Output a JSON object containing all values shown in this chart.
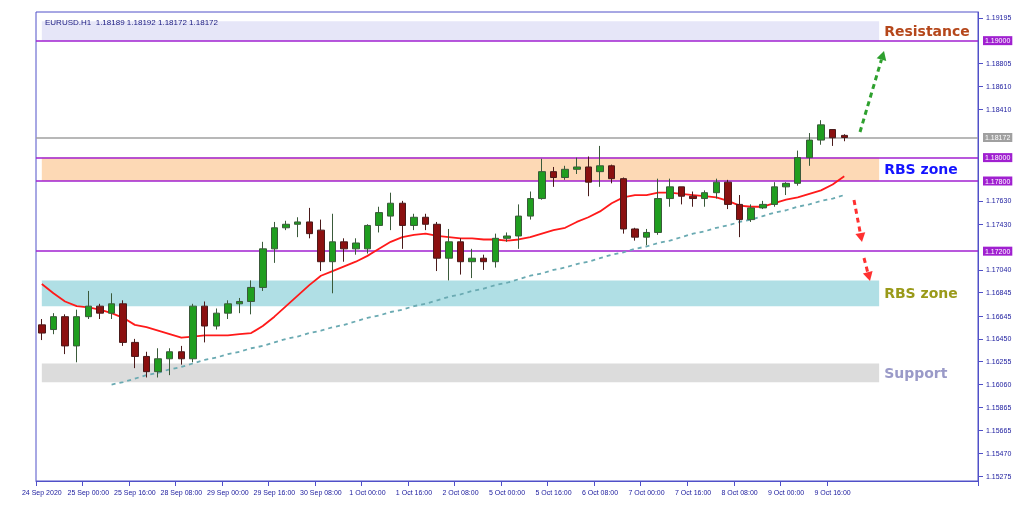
{
  "chart_data": {
    "type": "candlestick",
    "title": "EURUSD.H1  1.18189 1.18192 1.18172 1.18172",
    "categories": [
      "24 Sep 2020",
      null,
      null,
      null,
      "25 Sep 00:00",
      null,
      null,
      null,
      "25 Sep 16:00",
      null,
      null,
      null,
      "28 Sep 08:00",
      null,
      null,
      null,
      "29 Sep 00:00",
      null,
      null,
      null,
      "29 Sep 16:00",
      null,
      null,
      null,
      "30 Sep 08:00",
      null,
      null,
      null,
      "1 Oct 00:00",
      null,
      null,
      null,
      "1 Oct 16:00",
      null,
      null,
      null,
      "2 Oct 08:00",
      null,
      null,
      null,
      "5 Oct 00:00",
      null,
      null,
      null,
      "5 Oct 16:00",
      null,
      null,
      null,
      "6 Oct 08:00",
      null,
      null,
      null,
      "7 Oct 00:00",
      null,
      null,
      null,
      "7 Oct 16:00",
      null,
      null,
      null,
      "8 Oct 08:00",
      null,
      null,
      null,
      "9 Oct 00:00",
      null,
      null,
      null,
      "9 Oct 16:00",
      null
    ],
    "ohlc": [
      [
        1.1657,
        1.1662,
        1.1644,
        1.165
      ],
      [
        1.1653,
        1.1667,
        1.1649,
        1.1664
      ],
      [
        1.1664,
        1.1666,
        1.1632,
        1.1639
      ],
      [
        1.1639,
        1.167,
        1.1625,
        1.1664
      ],
      [
        1.1664,
        1.1686,
        1.1662,
        1.1673
      ],
      [
        1.1673,
        1.1675,
        1.1662,
        1.1667
      ],
      [
        1.1667,
        1.1684,
        1.1662,
        1.1675
      ],
      [
        1.1675,
        1.1678,
        1.1639,
        1.1642
      ],
      [
        1.1642,
        1.1645,
        1.162,
        1.163
      ],
      [
        1.163,
        1.1634,
        1.1612,
        1.1617
      ],
      [
        1.1617,
        1.1637,
        1.1612,
        1.1628
      ],
      [
        1.1628,
        1.1637,
        1.1614,
        1.1634
      ],
      [
        1.1634,
        1.1639,
        1.1623,
        1.1628
      ],
      [
        1.1628,
        1.1675,
        1.1625,
        1.1673
      ],
      [
        1.1673,
        1.1677,
        1.1642,
        1.1656
      ],
      [
        1.1656,
        1.1671,
        1.1653,
        1.1667
      ],
      [
        1.1667,
        1.1678,
        1.1662,
        1.1675
      ],
      [
        1.1675,
        1.168,
        1.1667,
        1.1677
      ],
      [
        1.1677,
        1.1695,
        1.1666,
        1.1689
      ],
      [
        1.1689,
        1.1728,
        1.1686,
        1.1722
      ],
      [
        1.1722,
        1.1745,
        1.171,
        1.174
      ],
      [
        1.174,
        1.1746,
        1.1738,
        1.1743
      ],
      [
        1.1743,
        1.1749,
        1.1732,
        1.1745
      ],
      [
        1.1745,
        1.1757,
        1.1731,
        1.1735
      ],
      [
        1.1738,
        1.1747,
        1.1703,
        1.1711
      ],
      [
        1.1711,
        1.1752,
        1.1684,
        1.1728
      ],
      [
        1.1728,
        1.1731,
        1.1711,
        1.1722
      ],
      [
        1.1722,
        1.1731,
        1.1717,
        1.1727
      ],
      [
        1.1722,
        1.1743,
        1.1718,
        1.1742
      ],
      [
        1.1742,
        1.1758,
        1.1736,
        1.1753
      ],
      [
        1.175,
        1.177,
        1.1738,
        1.1761
      ],
      [
        1.1761,
        1.1763,
        1.1722,
        1.1742
      ],
      [
        1.1742,
        1.1752,
        1.1738,
        1.1749
      ],
      [
        1.1749,
        1.1752,
        1.1738,
        1.1743
      ],
      [
        1.1743,
        1.1745,
        1.1703,
        1.1714
      ],
      [
        1.1714,
        1.1739,
        1.1695,
        1.1728
      ],
      [
        1.1728,
        1.1731,
        1.17,
        1.1711
      ],
      [
        1.1711,
        1.1722,
        1.1697,
        1.1714
      ],
      [
        1.1714,
        1.1717,
        1.1704,
        1.1711
      ],
      [
        1.1711,
        1.1735,
        1.1706,
        1.1731
      ],
      [
        1.1731,
        1.1736,
        1.1728,
        1.1733
      ],
      [
        1.1733,
        1.176,
        1.1722,
        1.175
      ],
      [
        1.175,
        1.1771,
        1.1747,
        1.1765
      ],
      [
        1.1765,
        1.1799,
        1.1764,
        1.1788
      ],
      [
        1.1788,
        1.1792,
        1.1775,
        1.1783
      ],
      [
        1.1783,
        1.1793,
        1.1781,
        1.179
      ],
      [
        1.179,
        1.18,
        1.1786,
        1.1792
      ],
      [
        1.1792,
        1.1801,
        1.1767,
        1.1779
      ],
      [
        1.1788,
        1.181,
        1.1775,
        1.1793
      ],
      [
        1.1793,
        1.1794,
        1.1778,
        1.1782
      ],
      [
        1.1782,
        1.1783,
        1.1735,
        1.1739
      ],
      [
        1.1739,
        1.174,
        1.1729,
        1.1732
      ],
      [
        1.1732,
        1.1739,
        1.1725,
        1.1736
      ],
      [
        1.1736,
        1.1782,
        1.1734,
        1.1765
      ],
      [
        1.1765,
        1.1782,
        1.1758,
        1.1775
      ],
      [
        1.1775,
        1.1775,
        1.176,
        1.1767
      ],
      [
        1.1767,
        1.1771,
        1.1758,
        1.1765
      ],
      [
        1.1765,
        1.1772,
        1.1758,
        1.177
      ],
      [
        1.177,
        1.1782,
        1.1765,
        1.1779
      ],
      [
        1.1779,
        1.1781,
        1.1756,
        1.176
      ],
      [
        1.176,
        1.1768,
        1.1732,
        1.1747
      ],
      [
        1.1747,
        1.176,
        1.1745,
        1.1757
      ],
      [
        1.1757,
        1.1763,
        1.1756,
        1.176
      ],
      [
        1.176,
        1.1779,
        1.1758,
        1.1775
      ],
      [
        1.1775,
        1.1779,
        1.1768,
        1.1778
      ],
      [
        1.1778,
        1.1806,
        1.1776,
        1.18
      ],
      [
        1.18,
        1.1821,
        1.1793,
        1.1815
      ],
      [
        1.1815,
        1.1832,
        1.1811,
        1.1828
      ],
      [
        1.1824,
        1.1824,
        1.181,
        1.1817
      ],
      [
        1.1819,
        1.182,
        1.1814,
        1.18172
      ]
    ],
    "series": [
      {
        "type": "line",
        "color": "#ff1a1a",
        "values": [
          1.1692,
          1.1684,
          1.1677,
          1.1673,
          1.1672,
          1.167,
          1.1667,
          1.1663,
          1.1657,
          1.1655,
          1.1652,
          1.1649,
          1.1646,
          1.1647,
          1.1648,
          1.1648,
          1.1648,
          1.1649,
          1.165,
          1.1656,
          1.1664,
          1.1673,
          1.1682,
          1.1691,
          1.1699,
          1.1703,
          1.1707,
          1.1711,
          1.1716,
          1.1722,
          1.1728,
          1.1732,
          1.1734,
          1.1735,
          1.1733,
          1.1732,
          1.1731,
          1.1731,
          1.173,
          1.173,
          1.1729,
          1.173,
          1.1732,
          1.1735,
          1.1738,
          1.174,
          1.1745,
          1.1749,
          1.1754,
          1.1761,
          1.1766,
          1.1768,
          1.1768,
          1.177,
          1.177,
          1.1769,
          1.1768,
          1.1767,
          1.1766,
          1.1763,
          1.1759,
          1.1758,
          1.1758,
          1.1761,
          1.1764,
          1.1766,
          1.1769,
          1.1772,
          1.1777,
          1.1784
        ]
      },
      {
        "type": "line",
        "color": "#6aaab2",
        "line_style": "dashed",
        "values": [
          null,
          null,
          null,
          null,
          null,
          null,
          1.1606,
          1.1608,
          1.1611,
          1.1614,
          1.1616,
          1.1619,
          1.1621,
          1.1624,
          1.1627,
          1.1629,
          1.1632,
          1.1634,
          1.1637,
          1.1639,
          1.1642,
          1.1645,
          1.1647,
          1.165,
          1.1652,
          1.1655,
          1.1657,
          1.166,
          1.1663,
          1.1665,
          1.1668,
          1.167,
          1.1673,
          1.1675,
          1.1678,
          1.1681,
          1.1683,
          1.1686,
          1.1688,
          1.1691,
          1.1693,
          1.1696,
          1.1699,
          1.1701,
          1.1704,
          1.1706,
          1.1709,
          1.1711,
          1.1714,
          1.1717,
          1.1719,
          1.1722,
          1.1724,
          1.1727,
          1.1729,
          1.1732,
          1.1735,
          1.1737,
          1.174,
          1.1742,
          1.1745,
          1.1747,
          1.175,
          1.1753,
          1.1755,
          1.1758,
          1.176,
          1.1763,
          1.1765,
          1.1768
        ]
      }
    ],
    "ylim": [
      1.15235,
      1.19245
    ],
    "yticks": [
      {
        "value": 1.19195,
        "label": "1.19195"
      },
      {
        "value": 1.18805,
        "label": "1.18805"
      },
      {
        "value": 1.1861,
        "label": "1.18610"
      },
      {
        "value": 1.1841,
        "label": "1.18410"
      },
      {
        "value": 1.1763,
        "label": "1.17630"
      },
      {
        "value": 1.1743,
        "label": "1.17430"
      },
      {
        "value": 1.1704,
        "label": "1.17040"
      },
      {
        "value": 1.16845,
        "label": "1.16845"
      },
      {
        "value": 1.16645,
        "label": "1.16645"
      },
      {
        "value": 1.1645,
        "label": "1.16450"
      },
      {
        "value": 1.16255,
        "label": "1.16255"
      },
      {
        "value": 1.1606,
        "label": "1.16060"
      },
      {
        "value": 1.15865,
        "label": "1.15865"
      },
      {
        "value": 1.15665,
        "label": "1.15665"
      },
      {
        "value": 1.1547,
        "label": "1.15470"
      },
      {
        "value": 1.15275,
        "label": "1.15275"
      }
    ],
    "ref_lines": [
      {
        "axis": "y",
        "value": 1.19,
        "label": "1.19000",
        "color": "#a020d0"
      },
      {
        "axis": "y",
        "value": 1.18172,
        "label": "1.18172",
        "color": "#a0a0a0"
      },
      {
        "axis": "y",
        "value": 1.18,
        "label": "1.18000",
        "color": "#a020d0"
      },
      {
        "axis": "y",
        "value": 1.178,
        "label": "1.17800",
        "color": "#a020d0"
      },
      {
        "axis": "y",
        "value": 1.172,
        "label": "1.17200",
        "color": "#a020d0"
      }
    ],
    "bands": [
      {
        "axis": "y",
        "from": 1.19,
        "to": 1.19166,
        "label": "Resistance",
        "color": "#e6e6f8"
      },
      {
        "axis": "y",
        "from": 1.178,
        "to": 1.18,
        "label": "RBS zone",
        "color": "#fdd9b5"
      },
      {
        "axis": "y",
        "from": 1.1673,
        "to": 1.1695,
        "label": "RBS zone",
        "color": "#b0dfe5"
      },
      {
        "axis": "y",
        "from": 1.1608,
        "to": 1.1624,
        "label": "Support",
        "color": "#dcdcdc"
      }
    ],
    "grid": false
  }
}
